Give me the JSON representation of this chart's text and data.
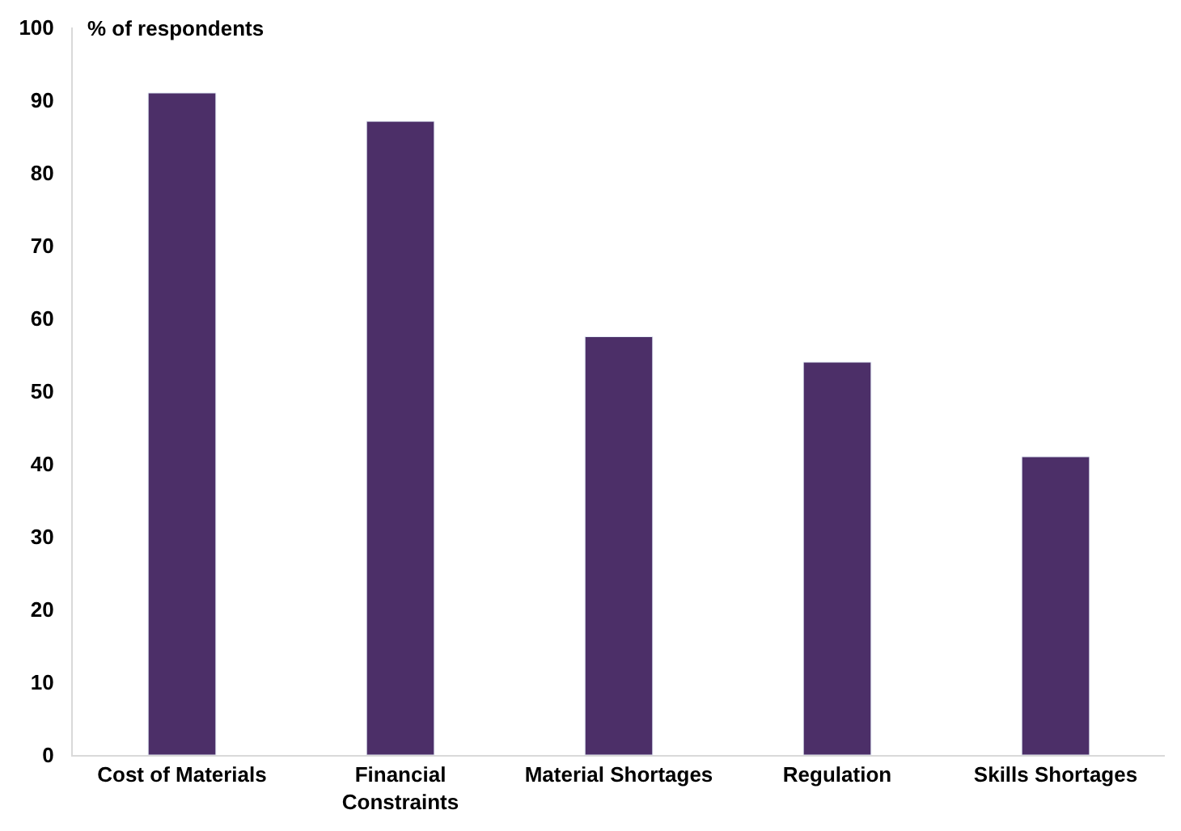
{
  "chart_data": {
    "type": "bar",
    "ylabel": "% of respondents",
    "categories": [
      "Cost of Materials",
      "Financial\nConstraints",
      "Material Shortages",
      "Regulation",
      "Skills Shortages"
    ],
    "values": [
      91,
      87.1,
      57.5,
      54,
      41
    ],
    "color": "#4c2f68",
    "ylim": [
      0,
      100
    ],
    "yticks": [
      0,
      10,
      20,
      30,
      40,
      50,
      60,
      70,
      80,
      90,
      100
    ]
  }
}
